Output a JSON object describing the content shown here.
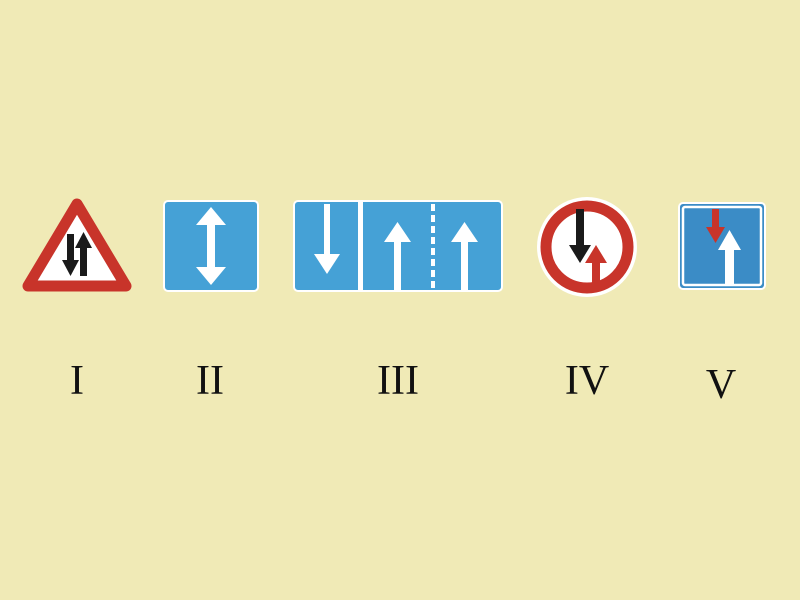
{
  "background": "#f0eab6",
  "colors": {
    "blue": "#45a1d6",
    "blue_dark": "#3b8cc6",
    "red": "#c8342a",
    "black": "#1a1a1a",
    "white": "#ffffff"
  },
  "signs": [
    {
      "label": "I",
      "icon": "two-way-traffic-warning-icon"
    },
    {
      "label": "II",
      "icon": "two-way-traffic-icon"
    },
    {
      "label": "III",
      "icon": "lane-direction-icon"
    },
    {
      "label": "IV",
      "icon": "priority-oncoming-traffic-icon"
    },
    {
      "label": "V",
      "icon": "priority-over-oncoming-traffic-icon"
    }
  ]
}
